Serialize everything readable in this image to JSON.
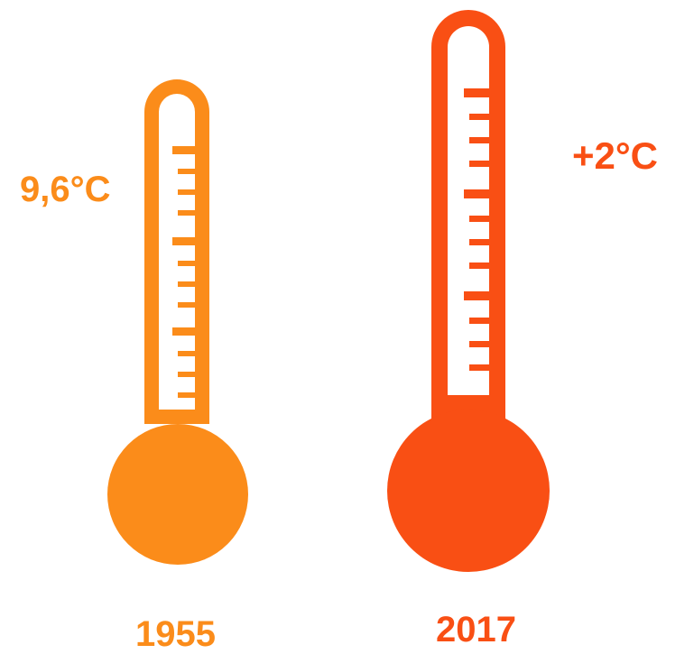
{
  "thermometers": [
    {
      "id": "1955",
      "value_label": "9,6°C",
      "year_label": "1955",
      "color": "#fb8c1a"
    },
    {
      "id": "2017",
      "value_label": "+2°C",
      "year_label": "2017",
      "color": "#f94f14"
    }
  ]
}
